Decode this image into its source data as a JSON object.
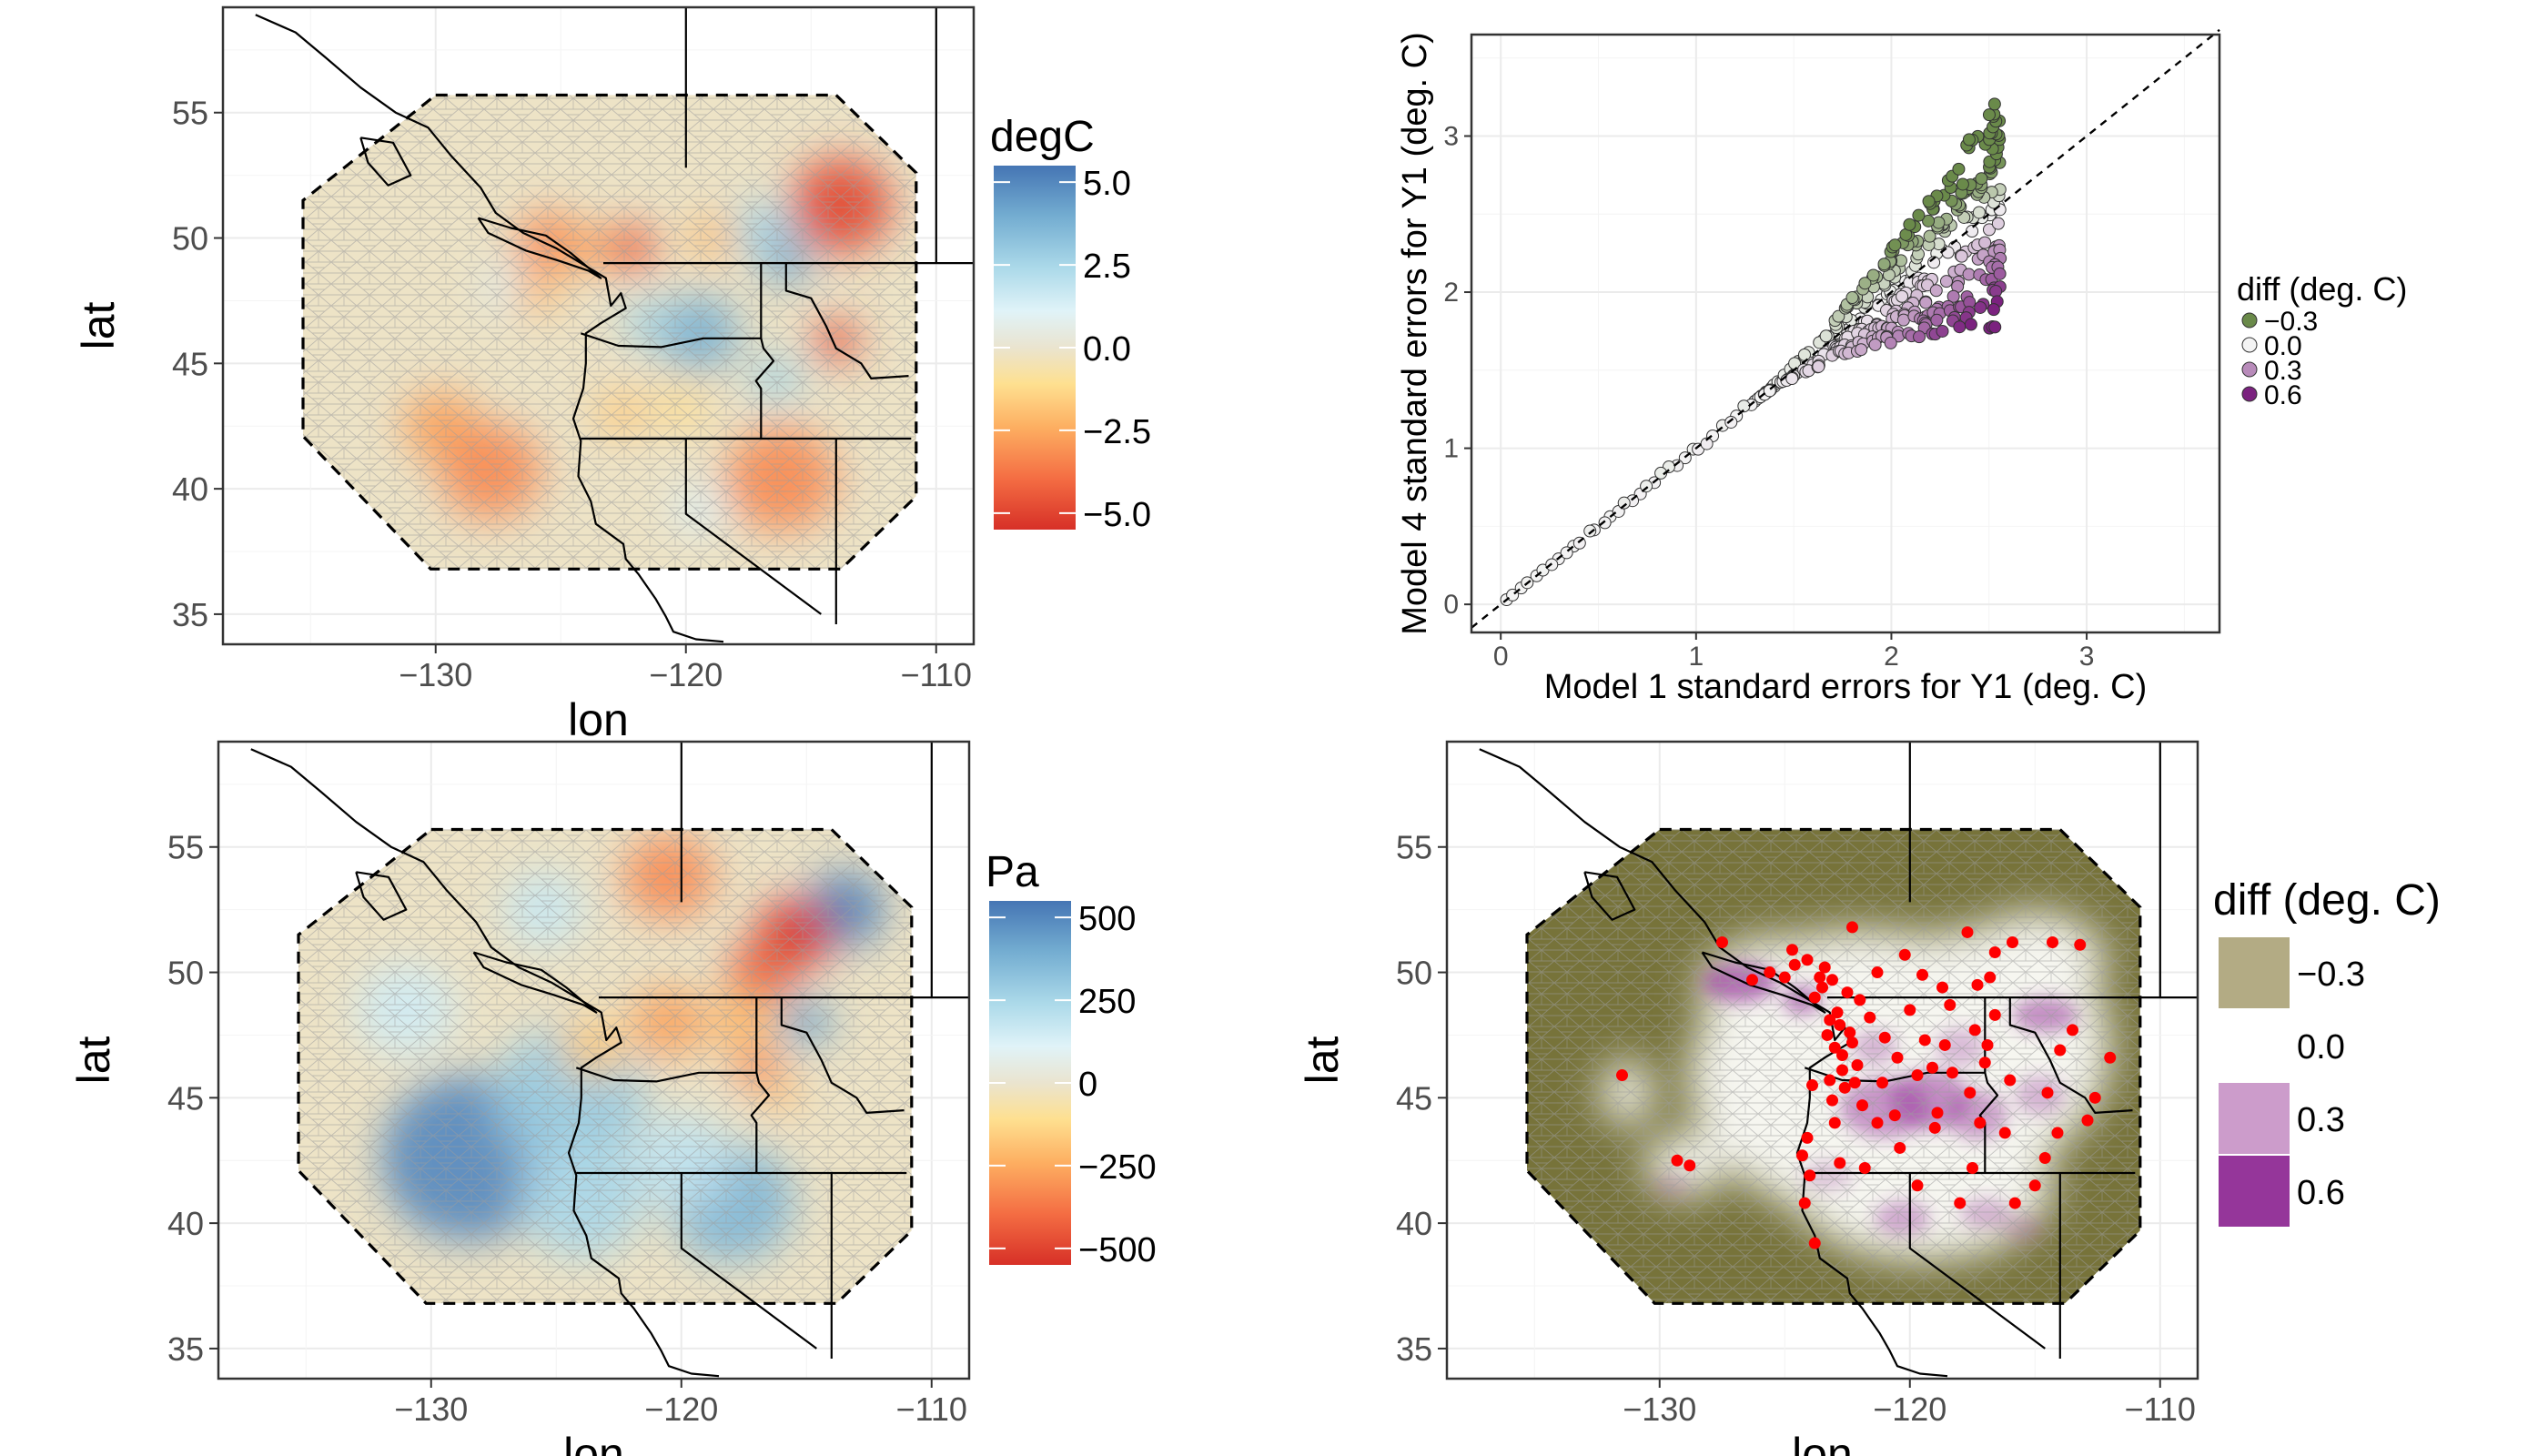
{
  "colors": {
    "panel_border": "#333333",
    "grid": "#ebebeb",
    "land_line": "#000000",
    "domain_fill": "#ede3c6",
    "mesh": "#b8b8b8",
    "rdbu": [
      "#d73027",
      "#f46d43",
      "#fdae61",
      "#fee090",
      "#eae4cf",
      "#e0f3f8",
      "#abd9e9",
      "#74add1",
      "#4575b4"
    ],
    "diff_low": "#6a8a4a",
    "diff_mid": "#f4f4f4",
    "diff_high": "#7b227f",
    "olive": "#77733a",
    "point_red": "#ff0000"
  },
  "chart_data": [
    {
      "id": "temperature-map",
      "type": "heatmap",
      "xlabel": "lon",
      "ylabel": "lat",
      "xlim": [
        -138.5,
        -108.5
      ],
      "ylim": [
        33.8,
        59.2
      ],
      "xticks": [
        -130,
        -120,
        -110
      ],
      "yticks": [
        35,
        40,
        45,
        50,
        55
      ],
      "legend": {
        "title": "degC",
        "labels": [
          "5.0",
          "2.5",
          "0.0",
          "−2.5",
          "−5.0"
        ],
        "values": [
          5.0,
          2.5,
          0.0,
          -2.5,
          -5.0
        ],
        "range": [
          -5.5,
          5.5
        ]
      },
      "blobs": [
        {
          "lon": -113.8,
          "lat": 51.3,
          "value": -5.0,
          "r": 2.0
        },
        {
          "lon": -114.0,
          "lat": 45.9,
          "value": -5.0,
          "r": 0.9
        },
        {
          "lon": -116.0,
          "lat": 49.1,
          "value": 4.5,
          "r": 1.0
        },
        {
          "lon": -116.8,
          "lat": 50.3,
          "value": 3.0,
          "r": 1.2
        },
        {
          "lon": -119.5,
          "lat": 46.2,
          "value": 4.0,
          "r": 1.6
        },
        {
          "lon": -121.5,
          "lat": 46.6,
          "value": 3.0,
          "r": 1.0
        },
        {
          "lon": -116.4,
          "lat": 44.4,
          "value": 3.0,
          "r": 1.0
        },
        {
          "lon": -127.0,
          "lat": 48.0,
          "value": 1.5,
          "r": 1.0
        },
        {
          "lon": -122.2,
          "lat": 49.6,
          "value": -4.5,
          "r": 1.0
        },
        {
          "lon": -125.5,
          "lat": 49.8,
          "value": -3.5,
          "r": 1.3
        },
        {
          "lon": -124.0,
          "lat": 49.6,
          "value": -3.0,
          "r": 0.9
        },
        {
          "lon": -119.0,
          "lat": 50.0,
          "value": -2.5,
          "r": 0.9
        },
        {
          "lon": -126.0,
          "lat": 47.8,
          "value": -2.5,
          "r": 0.9
        },
        {
          "lon": -129.8,
          "lat": 42.5,
          "value": -3.0,
          "r": 1.5
        },
        {
          "lon": -127.8,
          "lat": 40.7,
          "value": -3.5,
          "r": 2.0
        },
        {
          "lon": -122.6,
          "lat": 43.0,
          "value": -2.0,
          "r": 1.0
        },
        {
          "lon": -116.2,
          "lat": 40.4,
          "value": -3.5,
          "r": 2.2
        },
        {
          "lon": -119.5,
          "lat": 39.2,
          "value": 1.5,
          "r": 1.0
        },
        {
          "lon": -120.2,
          "lat": 43.2,
          "value": -1.5,
          "r": 1.0
        }
      ]
    },
    {
      "id": "pressure-map",
      "type": "heatmap",
      "xlabel": "lon",
      "ylabel": "lat",
      "xlim": [
        -138.5,
        -108.5
      ],
      "ylim": [
        33.8,
        59.2
      ],
      "xticks": [
        -130,
        -120,
        -110
      ],
      "yticks": [
        35,
        40,
        45,
        50,
        55
      ],
      "legend": {
        "title": "Pa",
        "labels": [
          "500",
          "250",
          "0",
          "−250",
          "−500"
        ],
        "values": [
          500,
          250,
          0,
          -250,
          -500
        ],
        "range": [
          -550,
          550
        ]
      },
      "blobs": [
        {
          "lon": -128.5,
          "lat": 42.6,
          "value": 500,
          "r": 3.5
        },
        {
          "lon": -124.5,
          "lat": 45.0,
          "value": 320,
          "r": 3.0
        },
        {
          "lon": -124.0,
          "lat": 41.0,
          "value": 280,
          "r": 2.5
        },
        {
          "lon": -118.0,
          "lat": 40.8,
          "value": 380,
          "r": 2.5
        },
        {
          "lon": -120.0,
          "lat": 42.5,
          "value": 220,
          "r": 2.0
        },
        {
          "lon": -113.5,
          "lat": 52.5,
          "value": 520,
          "r": 1.6
        },
        {
          "lon": -115.0,
          "lat": 48.0,
          "value": 450,
          "r": 1.0
        },
        {
          "lon": -115.5,
          "lat": 51.5,
          "value": -550,
          "r": 1.5
        },
        {
          "lon": -116.8,
          "lat": 50.0,
          "value": -450,
          "r": 1.3
        },
        {
          "lon": -117.5,
          "lat": 48.0,
          "value": -250,
          "r": 1.3
        },
        {
          "lon": -120.5,
          "lat": 53.8,
          "value": -350,
          "r": 1.8
        },
        {
          "lon": -120.5,
          "lat": 48.0,
          "value": -300,
          "r": 1.5
        },
        {
          "lon": -123.5,
          "lat": 47.0,
          "value": -200,
          "r": 1.3
        },
        {
          "lon": -117.0,
          "lat": 46.2,
          "value": -400,
          "r": 0.8
        },
        {
          "lon": -116.0,
          "lat": 45.2,
          "value": -250,
          "r": 0.7
        },
        {
          "lon": -125.5,
          "lat": 52.5,
          "value": 200,
          "r": 1.6
        },
        {
          "lon": -131.0,
          "lat": 48.5,
          "value": 180,
          "r": 2.0
        }
      ]
    },
    {
      "id": "scatter-se",
      "type": "scatter",
      "xlabel": "Model 1 standard errors for Y1 (deg. C)",
      "ylabel": "Model 4 standard errors for Y1 (deg. C)",
      "xlim": [
        -0.15,
        3.68
      ],
      "ylim": [
        -0.18,
        3.65
      ],
      "xticks": [
        0,
        1,
        2,
        3
      ],
      "yticks": [
        0,
        1,
        2,
        3
      ],
      "reference_line": {
        "slope": 1,
        "intercept": 0,
        "style": "dashed"
      },
      "legend": {
        "title": "diff (deg. C)",
        "labels": [
          "−0.3",
          "0.0",
          "0.3",
          "0.6"
        ],
        "values": [
          -0.3,
          0.0,
          0.3,
          0.6
        ]
      }
    },
    {
      "id": "diff-map",
      "type": "heatmap",
      "xlabel": "lon",
      "ylabel": "lat",
      "xlim": [
        -138.5,
        -108.5
      ],
      "ylim": [
        33.8,
        59.2
      ],
      "xticks": [
        -130,
        -120,
        -110
      ],
      "yticks": [
        35,
        40,
        45,
        50,
        55
      ],
      "legend": {
        "title": "diff (deg. C)",
        "labels": [
          "−0.3",
          "0.0",
          "0.3",
          "0.6"
        ],
        "values": [
          -0.3,
          0.0,
          0.3,
          0.6
        ]
      },
      "stations": [
        [
          -124.7,
          50.9
        ],
        [
          -124.6,
          50.3
        ],
        [
          -123.4,
          50.2
        ],
        [
          -123.5,
          49.4
        ],
        [
          -122.5,
          49.2
        ],
        [
          -123.1,
          49.7
        ],
        [
          -122.9,
          48.4
        ],
        [
          -123.2,
          48.1
        ],
        [
          -122.4,
          47.6
        ],
        [
          -122.3,
          47.2
        ],
        [
          -123.0,
          47.0
        ],
        [
          -122.7,
          46.1
        ],
        [
          -122.6,
          45.4
        ],
        [
          -123.1,
          44.9
        ],
        [
          -123.0,
          44.0
        ],
        [
          -122.8,
          42.4
        ],
        [
          -124.1,
          43.4
        ],
        [
          -124.0,
          41.9
        ],
        [
          -124.2,
          40.8
        ],
        [
          -123.8,
          39.2
        ],
        [
          -121.6,
          48.2
        ],
        [
          -121.0,
          47.4
        ],
        [
          -120.5,
          46.6
        ],
        [
          -119.7,
          45.9
        ],
        [
          -119.1,
          46.2
        ],
        [
          -118.3,
          46.0
        ],
        [
          -117.4,
          47.7
        ],
        [
          -117.0,
          46.4
        ],
        [
          -116.6,
          48.3
        ],
        [
          -114.0,
          46.9
        ],
        [
          -112.0,
          46.6
        ],
        [
          -116.2,
          43.6
        ],
        [
          -117.2,
          44.0
        ],
        [
          -119.0,
          43.8
        ],
        [
          -120.6,
          44.3
        ],
        [
          -121.3,
          44.0
        ],
        [
          -120.4,
          43.0
        ],
        [
          -117.5,
          42.2
        ],
        [
          -121.8,
          42.2
        ],
        [
          -119.7,
          41.5
        ],
        [
          -118.0,
          40.8
        ],
        [
          -115.8,
          40.8
        ],
        [
          -115.0,
          41.5
        ],
        [
          -114.6,
          42.6
        ],
        [
          -117.3,
          49.5
        ],
        [
          -118.7,
          49.4
        ],
        [
          -120.2,
          50.7
        ],
        [
          -119.5,
          49.9
        ],
        [
          -121.3,
          50.0
        ],
        [
          -116.6,
          50.8
        ],
        [
          -115.9,
          51.2
        ],
        [
          -114.3,
          51.2
        ],
        [
          -113.2,
          51.1
        ],
        [
          -122.3,
          51.8
        ],
        [
          -127.5,
          51.2
        ],
        [
          -125.6,
          50.0
        ],
        [
          -123.8,
          49.0
        ],
        [
          -126.3,
          49.7
        ],
        [
          -125.0,
          49.8
        ],
        [
          -117.7,
          51.6
        ],
        [
          -116.8,
          49.8
        ],
        [
          -118.4,
          48.7
        ],
        [
          -113.5,
          47.7
        ],
        [
          -116.0,
          45.7
        ],
        [
          -114.5,
          45.2
        ],
        [
          -112.6,
          45.0
        ],
        [
          -116.9,
          47.1
        ],
        [
          -112.9,
          44.1
        ],
        [
          -114.1,
          43.6
        ],
        [
          -131.5,
          45.9
        ],
        [
          -129.3,
          42.5
        ],
        [
          -128.8,
          42.3
        ],
        [
          -124.3,
          42.7
        ],
        [
          -123.9,
          45.5
        ],
        [
          -123.2,
          45.7
        ],
        [
          -121.9,
          44.7
        ],
        [
          -118.9,
          44.4
        ],
        [
          -117.6,
          45.2
        ],
        [
          -122.7,
          46.7
        ],
        [
          -121.1,
          45.6
        ],
        [
          -120.0,
          48.5
        ],
        [
          -119.4,
          47.3
        ],
        [
          -118.6,
          47.1
        ],
        [
          -122.0,
          48.9
        ],
        [
          -123.6,
          49.8
        ],
        [
          -124.1,
          50.5
        ],
        [
          -122.8,
          47.9
        ],
        [
          -123.3,
          47.5
        ],
        [
          -122.1,
          46.3
        ],
        [
          -122.2,
          45.6
        ]
      ]
    }
  ]
}
